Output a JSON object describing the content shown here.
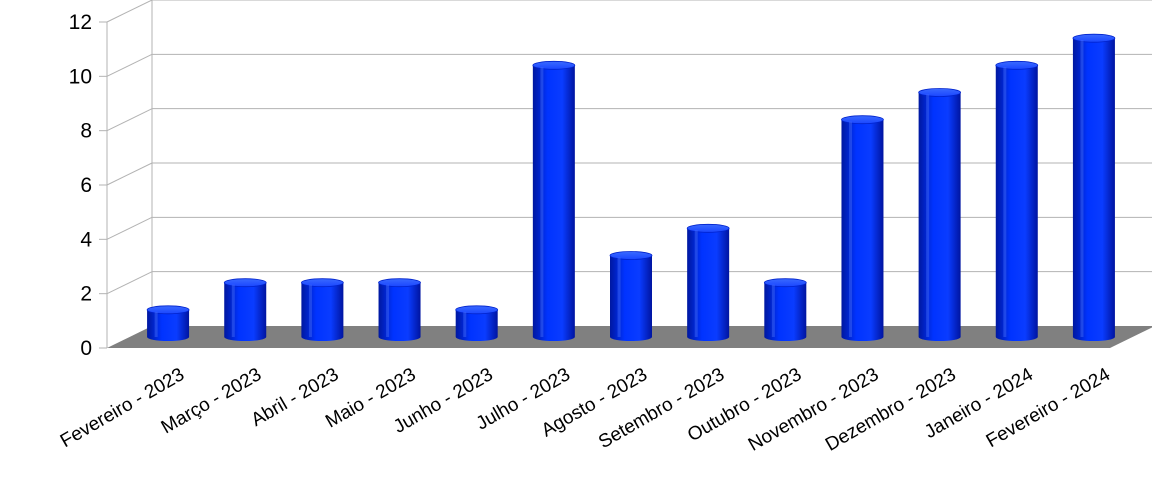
{
  "chart_data": {
    "type": "bar",
    "categories": [
      "Fevereiro - 2023",
      "Março - 2023",
      "Abril - 2023",
      "Maio - 2023",
      "Junho - 2023",
      "Julho - 2023",
      "Agosto - 2023",
      "Setembro - 2023",
      "Outubro - 2023",
      "Novembro - 2023",
      "Dezembro - 2023",
      "Janeiro - 2024",
      "Fevereiro - 2024"
    ],
    "values": [
      1,
      2,
      2,
      2,
      1,
      10,
      3,
      4,
      2,
      8,
      9,
      10,
      11
    ],
    "yticks": [
      "0",
      "2",
      "4",
      "6",
      "8",
      "10",
      "12"
    ],
    "ylim": [
      0,
      12
    ],
    "title": "",
    "xlabel": "",
    "ylabel": "",
    "style": "3d-cylinder",
    "grid": true,
    "legend": "none",
    "colors": {
      "bar": "#0033ff",
      "bar_dark": "#0018a0",
      "bar_light": "#4d78ff",
      "floor": "#808080",
      "grid": "#b3b3b3",
      "axis": "#b3b3b3"
    }
  }
}
